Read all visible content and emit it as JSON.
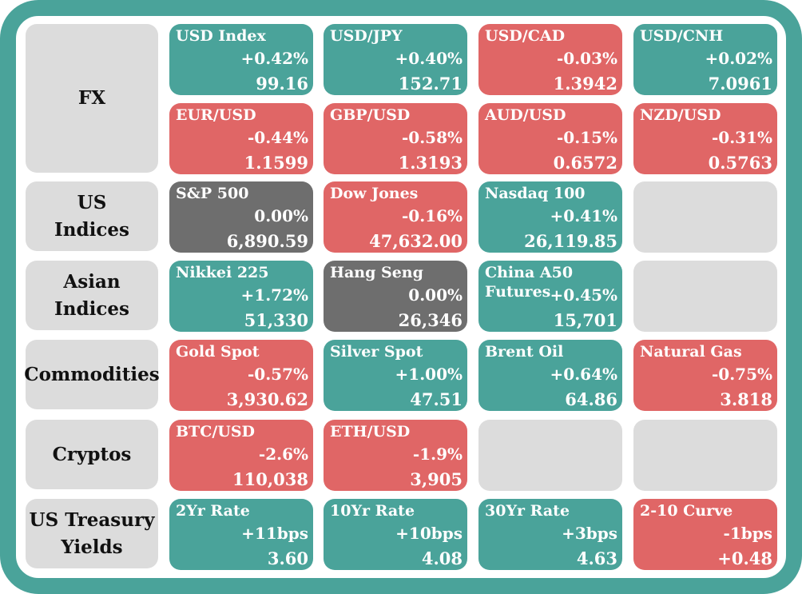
{
  "colors": {
    "frame": "#4aa39a",
    "up": "#4aa39a",
    "down": "#e06666",
    "flat": "#6e6e6e",
    "empty": "#dcdcdc"
  },
  "rows": [
    {
      "label": [
        "FX"
      ],
      "tiles": [
        {
          "name": "USD Index",
          "change": "+0.42%",
          "value": "99.16",
          "state": "up"
        },
        {
          "name": "USD/JPY",
          "change": "+0.40%",
          "value": "152.71",
          "state": "up"
        },
        {
          "name": "USD/CAD",
          "change": "-0.03%",
          "value": "1.3942",
          "state": "down"
        },
        {
          "name": "USD/CNH",
          "change": "+0.02%",
          "value": "7.0961",
          "state": "up"
        },
        {
          "name": "EUR/USD",
          "change": "-0.44%",
          "value": "1.1599",
          "state": "down"
        },
        {
          "name": "GBP/USD",
          "change": "-0.58%",
          "value": "1.3193",
          "state": "down"
        },
        {
          "name": "AUD/USD",
          "change": "-0.15%",
          "value": "0.6572",
          "state": "down"
        },
        {
          "name": "NZD/USD",
          "change": "-0.31%",
          "value": "0.5763",
          "state": "down"
        }
      ]
    },
    {
      "label": [
        "US",
        "Indices"
      ],
      "tiles": [
        {
          "name": "S&P 500",
          "change": "0.00%",
          "value": "6,890.59",
          "state": "flat"
        },
        {
          "name": "Dow Jones",
          "change": "-0.16%",
          "value": "47,632.00",
          "state": "down"
        },
        {
          "name": "Nasdaq 100",
          "change": "+0.41%",
          "value": "26,119.85",
          "state": "up"
        },
        {
          "state": "empty"
        }
      ]
    },
    {
      "label": [
        "Asian",
        "Indices"
      ],
      "tiles": [
        {
          "name": "Nikkei 225",
          "change": "+1.72%",
          "value": "51,330",
          "state": "up"
        },
        {
          "name": "Hang Seng",
          "change": "0.00%",
          "value": "26,346",
          "state": "flat"
        },
        {
          "name": "China A50\nFutures",
          "change": "+0.45%",
          "value": "15,701",
          "state": "up"
        },
        {
          "state": "empty"
        }
      ]
    },
    {
      "label": [
        "Commodities"
      ],
      "tiles": [
        {
          "name": "Gold Spot",
          "change": "-0.57%",
          "value": "3,930.62",
          "state": "down"
        },
        {
          "name": "Silver Spot",
          "change": "+1.00%",
          "value": "47.51",
          "state": "up"
        },
        {
          "name": "Brent Oil",
          "change": "+0.64%",
          "value": "64.86",
          "state": "up"
        },
        {
          "name": "Natural Gas",
          "change": "-0.75%",
          "value": "3.818",
          "state": "down"
        }
      ]
    },
    {
      "label": [
        "Cryptos"
      ],
      "tiles": [
        {
          "name": "BTC/USD",
          "change": "-2.6%",
          "value": "110,038",
          "state": "down"
        },
        {
          "name": "ETH/USD",
          "change": "-1.9%",
          "value": "3,905",
          "state": "down"
        },
        {
          "state": "empty"
        },
        {
          "state": "empty"
        }
      ]
    },
    {
      "label": [
        "US Treasury",
        "Yields"
      ],
      "tiles": [
        {
          "name": "2Yr Rate",
          "change": "+11bps",
          "value": "3.60",
          "state": "up"
        },
        {
          "name": "10Yr Rate",
          "change": "+10bps",
          "value": "4.08",
          "state": "up"
        },
        {
          "name": "30Yr Rate",
          "change": "+3bps",
          "value": "4.63",
          "state": "up"
        },
        {
          "name": "2-10 Curve",
          "change": "-1bps",
          "value": "+0.48",
          "state": "down"
        }
      ]
    }
  ]
}
